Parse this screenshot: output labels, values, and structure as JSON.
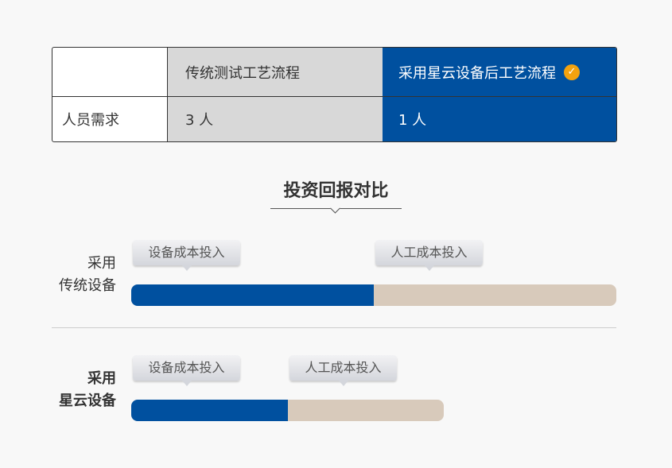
{
  "table": {
    "headers": [
      "",
      "传统测试工艺流程",
      "采用星云设备后工艺流程"
    ],
    "header_icon": "check-circle-icon",
    "rows": [
      {
        "label": "人员需求",
        "traditional": "3 人",
        "xingyun": "1 人"
      }
    ]
  },
  "section_title": "投资回报对比",
  "comparisons": [
    {
      "label_line1": "采用",
      "label_line2": "传统设备",
      "bold": false,
      "segments": [
        {
          "label": "设备成本投入",
          "fraction": 0.5,
          "color": "#00509f"
        },
        {
          "label": "人工成本投入",
          "fraction": 0.5,
          "color": "#d8cabb"
        }
      ]
    },
    {
      "label_line1": "采用",
      "label_line2": "星云设备",
      "bold": true,
      "segments": [
        {
          "label": "设备成本投入",
          "fraction": 0.323,
          "color": "#00509f"
        },
        {
          "label": "人工成本投入",
          "fraction": 0.321,
          "color": "#d8cabb"
        }
      ]
    }
  ],
  "colors": {
    "accent_blue": "#00509f",
    "beige": "#d8cabb",
    "check_orange": "#f3a20f"
  }
}
